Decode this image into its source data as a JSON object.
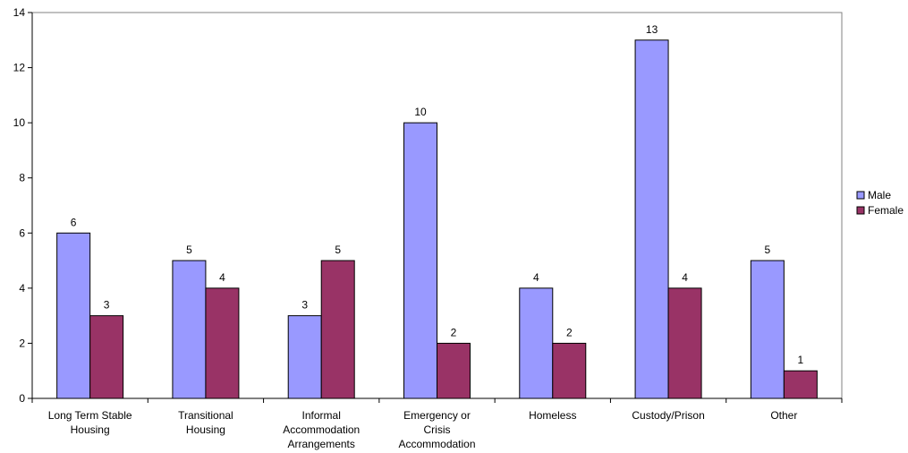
{
  "chart_data": {
    "type": "bar",
    "title": "",
    "xlabel": "",
    "ylabel": "",
    "ylim": [
      0,
      14
    ],
    "yticks": [
      0,
      2,
      4,
      6,
      8,
      10,
      12,
      14
    ],
    "grid": false,
    "legend_position": "right",
    "categories": [
      [
        "Long Term Stable",
        "Housing"
      ],
      [
        "Transitional",
        "Housing"
      ],
      [
        "Informal",
        "Accommodation",
        "Arrangements"
      ],
      [
        "Emergency or",
        "Crisis",
        "Accommodation"
      ],
      [
        "Homeless"
      ],
      [
        "Custody/Prison"
      ],
      [
        "Other"
      ]
    ],
    "series": [
      {
        "name": "Male",
        "color": "#9999ff",
        "values": [
          6,
          5,
          3,
          10,
          4,
          13,
          5
        ]
      },
      {
        "name": "Female",
        "color": "#993366",
        "values": [
          3,
          4,
          5,
          2,
          2,
          4,
          1
        ]
      }
    ]
  }
}
